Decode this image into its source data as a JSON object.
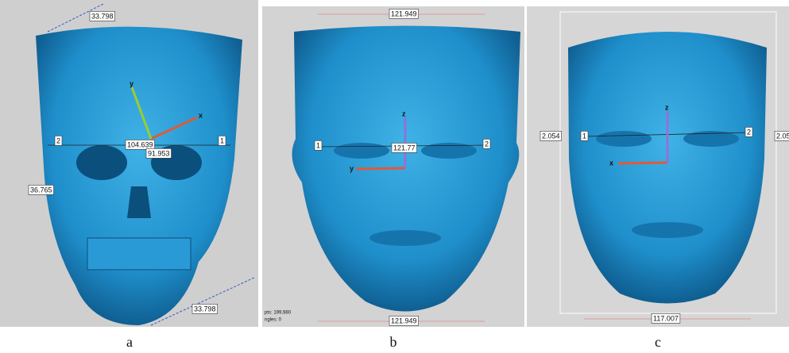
{
  "panels": [
    {
      "label": "a",
      "annotations": [
        "33.798",
        "104.639",
        "91.953",
        "36.765",
        "33.798",
        "2",
        "1",
        "x",
        "y"
      ]
    },
    {
      "label": "b",
      "annotations": [
        "121.949",
        "1",
        "2",
        "121.77",
        "z",
        "y",
        "121.949",
        "pts: 199,980",
        "ngles: 0"
      ]
    },
    {
      "label": "c",
      "annotations": [
        "117.007",
        "2.054",
        "1",
        "2",
        "z",
        "x",
        "2.05"
      ]
    }
  ]
}
